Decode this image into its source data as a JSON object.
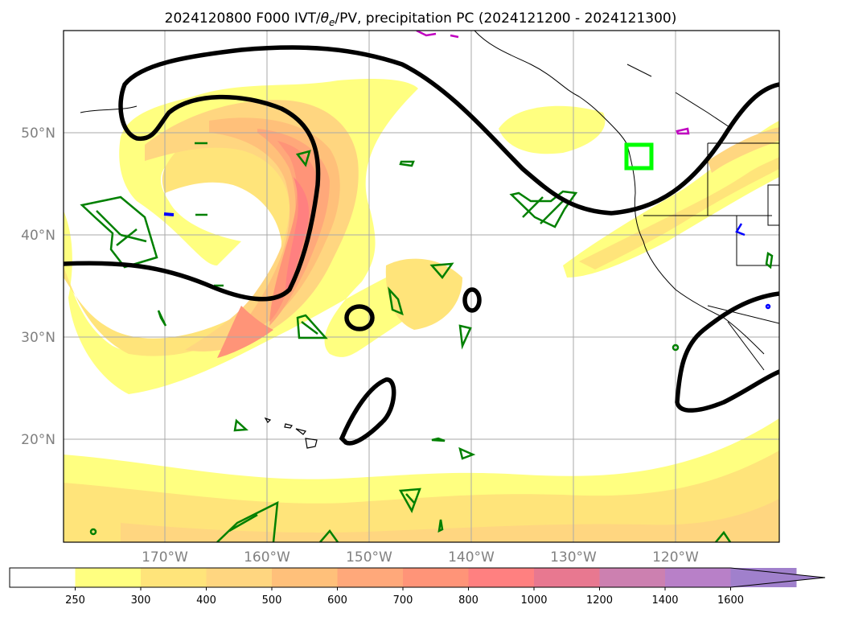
{
  "title": "2024120800 F000 IVT/θe/PV, precipitation PC (2024121200 - 2024121300)",
  "title_parts": {
    "prefix": "2024120800 F000 IVT/",
    "theta": "θ",
    "theta_sub": "e",
    "suffix": "/PV, precipitation PC (2024121200 - 2024121300)"
  },
  "map": {
    "lat_labels": [
      "50°N",
      "40°N",
      "30°N",
      "20°N"
    ],
    "lon_labels": [
      "170°W",
      "160°W",
      "150°W",
      "140°W",
      "130°W",
      "120°W"
    ],
    "grid": true,
    "highlight_box_color": "#00ff00",
    "pv_contour_color": "#000000",
    "precip_contour_color": "#008000"
  },
  "colorbar": {
    "ticks": [
      "250",
      "300",
      "400",
      "500",
      "600",
      "700",
      "800",
      "1000",
      "1200",
      "1400",
      "1600"
    ],
    "colors": [
      "#ffffff",
      "#ffff80",
      "#ffe47a",
      "#ffd680",
      "#ffc07a",
      "#ffa87a",
      "#ff9478",
      "#ff8080",
      "#e87890",
      "#cc80b0",
      "#b880c8",
      "#a080cc"
    ],
    "extend": "max"
  }
}
